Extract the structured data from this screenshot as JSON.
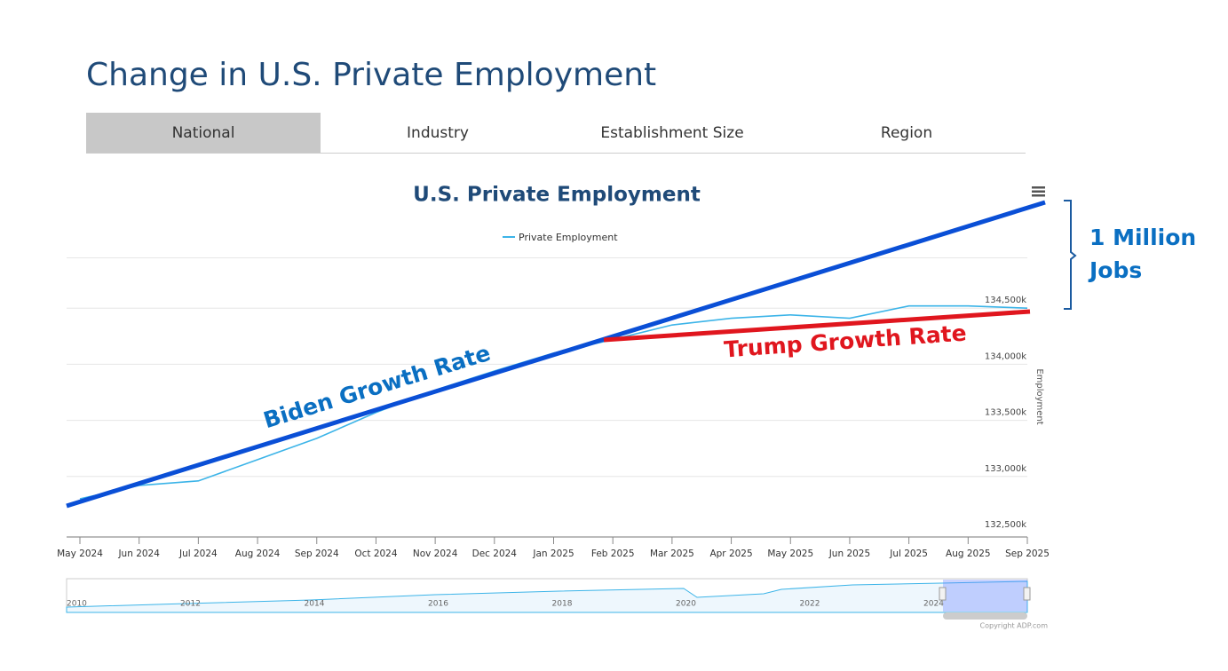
{
  "header": {
    "title": "Change in U.S. Private Employment"
  },
  "tabs": [
    "National",
    "Industry",
    "Establishment Size",
    "Region"
  ],
  "chart_data": {
    "type": "line",
    "title": "U.S. Private Employment",
    "y_label": "Employment",
    "categories": [
      "May 2024",
      "Jun 2024",
      "Jul 2024",
      "Aug 2024",
      "Sep 2024",
      "Oct 2024",
      "Nov 2024",
      "Dec 2024",
      "Jan 2025",
      "Feb 2025",
      "Mar 2025",
      "Apr 2025",
      "May 2025",
      "Jun 2025",
      "Jul 2025",
      "Aug 2025",
      "Sep 2025"
    ],
    "series": [
      {
        "name": "Private Employment",
        "color": "#3cb4e8",
        "values": [
          132800,
          132920,
          132960,
          133150,
          133340,
          133570,
          133770,
          133940,
          134100,
          134220,
          134350,
          134410,
          134440,
          134410,
          134520,
          134520,
          134500
        ]
      }
    ],
    "ylim": [
      132500,
      135000
    ],
    "yticks": [
      {
        "value": 132500,
        "label": "132,500k"
      },
      {
        "value": 133000,
        "label": "133,000k"
      },
      {
        "value": 133500,
        "label": "133,500k"
      },
      {
        "value": 134000,
        "label": "134,000k"
      },
      {
        "value": 134500,
        "label": "134,500k"
      }
    ],
    "grid": true,
    "annotations": {
      "biden": "Biden Growth Rate",
      "trump": "Trump Growth Rate",
      "jobs": [
        "1 Million",
        "Jobs"
      ]
    },
    "navigator_labels": [
      "2010",
      "2012",
      "2014",
      "2016",
      "2018",
      "2020",
      "2022",
      "2024"
    ],
    "credit": "Copyright ADP.com"
  }
}
